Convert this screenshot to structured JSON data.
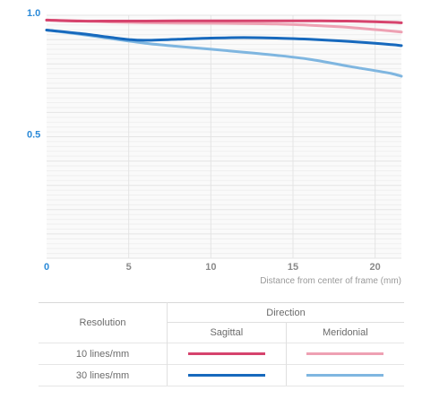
{
  "chart_data": {
    "type": "line",
    "xlabel": "Distance from center of frame (mm)",
    "ylabel": "",
    "xlim": [
      0,
      21.6
    ],
    "ylim": [
      0,
      1.0
    ],
    "x_ticks": [
      "0",
      "5",
      "10",
      "15",
      "20"
    ],
    "y_ticks": [
      "0.5",
      "1.0"
    ],
    "grid": true,
    "series": [
      {
        "name": "10 lines/mm Sagittal",
        "color": "#d6436d",
        "x": [
          0,
          2,
          4,
          6,
          8,
          10,
          12,
          14,
          16,
          18,
          19,
          20,
          21,
          21.6
        ],
        "y": [
          0.98,
          0.976,
          0.976,
          0.976,
          0.977,
          0.977,
          0.977,
          0.977,
          0.977,
          0.976,
          0.975,
          0.973,
          0.971,
          0.969
        ]
      },
      {
        "name": "10 lines/mm Meridonial",
        "color": "#eea1b3",
        "x": [
          0,
          2,
          4,
          6,
          8,
          10,
          12,
          14,
          16,
          18,
          19,
          20,
          21,
          21.6
        ],
        "y": [
          0.98,
          0.977,
          0.972,
          0.969,
          0.968,
          0.967,
          0.966,
          0.964,
          0.959,
          0.952,
          0.947,
          0.941,
          0.935,
          0.931
        ]
      },
      {
        "name": "30 lines/mm Sagittal",
        "color": "#1769bd",
        "x": [
          0,
          2,
          4,
          5,
          6,
          8,
          10,
          12,
          14,
          16,
          18,
          20,
          21,
          21.6
        ],
        "y": [
          0.939,
          0.925,
          0.908,
          0.9,
          0.897,
          0.901,
          0.906,
          0.908,
          0.906,
          0.901,
          0.894,
          0.885,
          0.879,
          0.875
        ]
      },
      {
        "name": "30 lines/mm Meridonial",
        "color": "#7fb6e0",
        "x": [
          0,
          2,
          4,
          6,
          8,
          10,
          12,
          14,
          16,
          18,
          19,
          20,
          21,
          21.6
        ],
        "y": [
          0.939,
          0.922,
          0.903,
          0.885,
          0.872,
          0.86,
          0.848,
          0.835,
          0.819,
          0.795,
          0.783,
          0.772,
          0.76,
          0.749
        ]
      }
    ]
  },
  "legend": {
    "resolution_header": "Resolution",
    "direction_header": "Direction",
    "sagittal_header": "Sagittal",
    "meridonial_header": "Meridonial",
    "rows": [
      {
        "label": "10 lines/mm",
        "sagittal_color": "#d6436d",
        "meridonial_color": "#eea1b3"
      },
      {
        "label": "30 lines/mm",
        "sagittal_color": "#1769bd",
        "meridonial_color": "#7fb6e0"
      }
    ]
  }
}
